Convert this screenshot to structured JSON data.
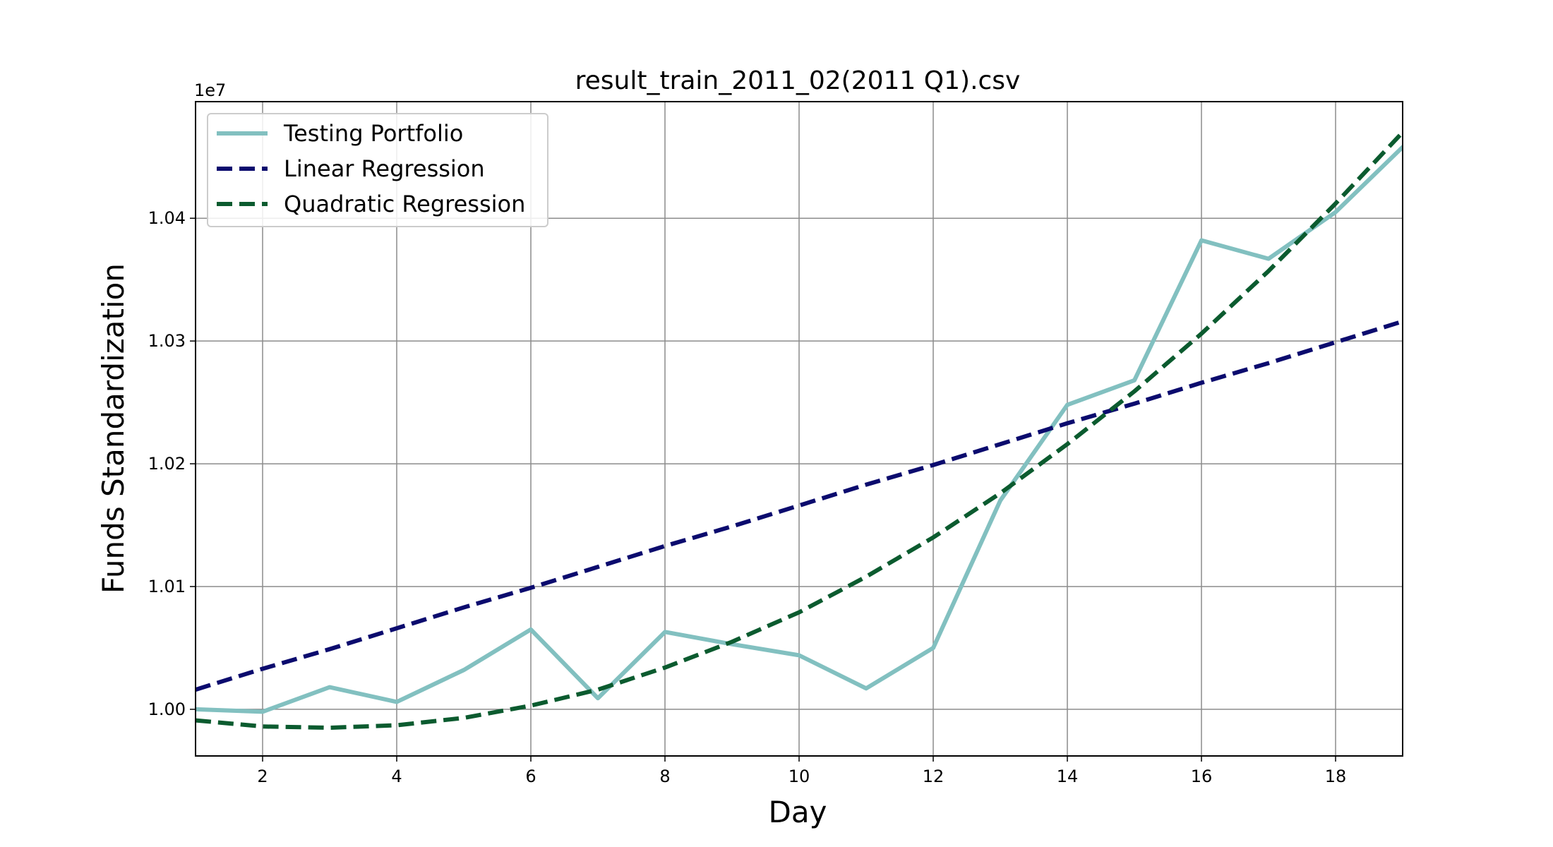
{
  "chart_data": {
    "type": "line",
    "title": "result_train_2011_02(2011 Q1).csv",
    "xlabel": "Day",
    "ylabel": "Funds Standardization",
    "y_offset_label": "1e7",
    "xlim": [
      1,
      19
    ],
    "ylim": [
      0.9962,
      1.0495
    ],
    "x_ticks": [
      2,
      4,
      6,
      8,
      10,
      12,
      14,
      16,
      18
    ],
    "y_ticks": [
      1.0,
      1.01,
      1.02,
      1.03,
      1.04
    ],
    "y_tick_labels": [
      "1.00",
      "1.01",
      "1.02",
      "1.03",
      "1.04"
    ],
    "grid": true,
    "legend_position": "upper-left",
    "x": [
      1,
      2,
      3,
      4,
      5,
      6,
      7,
      8,
      9,
      10,
      11,
      12,
      13,
      14,
      15,
      16,
      17,
      18,
      19
    ],
    "series": [
      {
        "name": "Testing Portfolio",
        "style": "solid",
        "color": "#82c0c0",
        "values": [
          1.0,
          0.9998,
          1.0018,
          1.0006,
          1.0032,
          1.0065,
          1.0009,
          1.0063,
          1.0053,
          1.0044,
          1.0017,
          1.005,
          1.017,
          1.0248,
          1.0268,
          1.0382,
          1.0367,
          1.0405,
          1.0458
        ]
      },
      {
        "name": "Linear Regression",
        "style": "dashed",
        "color": "#0b0b6e",
        "values": [
          1.0016,
          1.0033,
          1.0049,
          1.0066,
          1.0083,
          1.0099,
          1.0116,
          1.0133,
          1.0149,
          1.0166,
          1.0183,
          1.0199,
          1.0216,
          1.0233,
          1.0249,
          1.0266,
          1.0282,
          1.0299,
          1.0316
        ]
      },
      {
        "name": "Quadratic Regression",
        "style": "dashed",
        "color": "#0b5b2f",
        "values": [
          0.9991,
          0.9986,
          0.9985,
          0.9987,
          0.9993,
          1.0003,
          1.0016,
          1.0034,
          1.0055,
          1.0079,
          1.0108,
          1.014,
          1.0176,
          1.0216,
          1.0259,
          1.0306,
          1.0357,
          1.0412,
          1.047
        ]
      }
    ]
  }
}
